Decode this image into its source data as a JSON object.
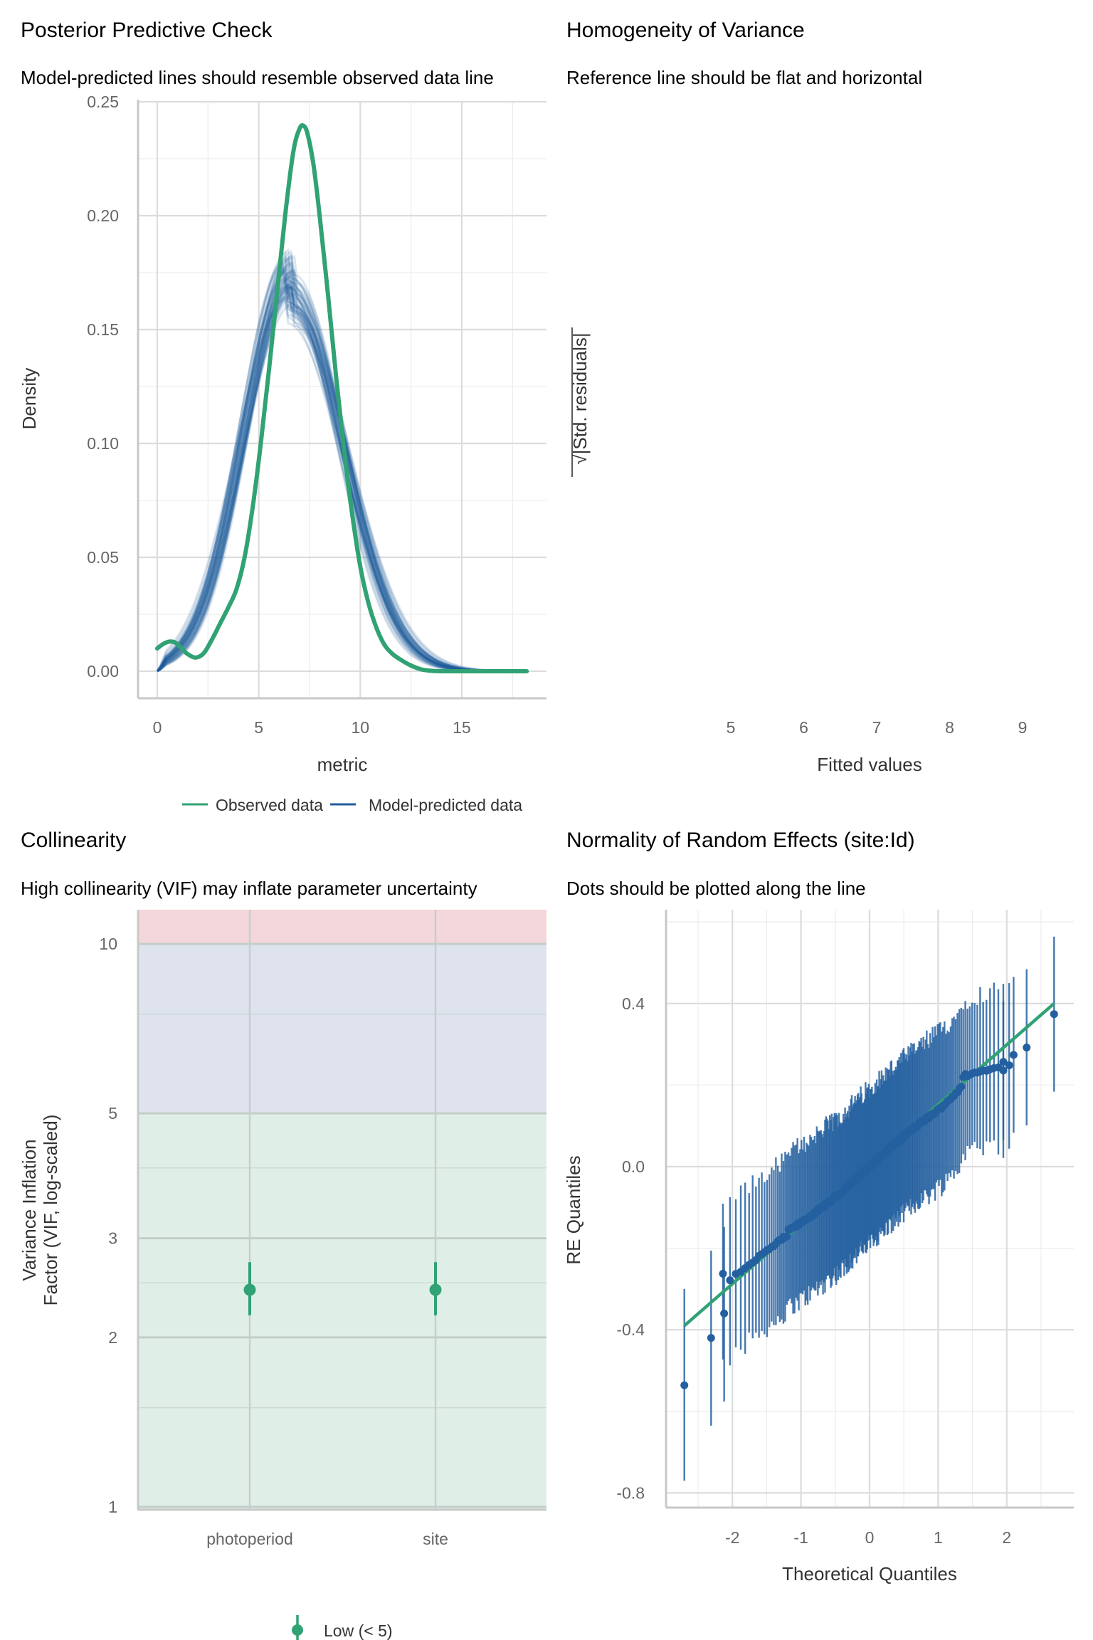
{
  "colors": {
    "observed": "#30A274",
    "predicted": "#205D9E",
    "qq_point": "#2460A0",
    "qq_line": "#30A274",
    "vif_low_band": "#DFEFE7",
    "vif_moderate_band": "#DEE3EE",
    "vif_high_band": "#F4D7DB",
    "vif_point": "#30A274"
  },
  "chart_data": [
    {
      "id": "ppc",
      "type": "line",
      "title": "Posterior Predictive Check",
      "subtitle": "Model-predicted lines should resemble observed data line",
      "xlabel": "metric",
      "ylabel": "Density",
      "xlim": [
        -0.9,
        19.2
      ],
      "ylim": [
        -0.012,
        0.25
      ],
      "xticks": [
        0,
        5,
        10,
        15
      ],
      "xtick_labels": [
        "0",
        "5",
        "10",
        "15"
      ],
      "yticks": [
        0,
        0.05,
        0.1,
        0.15,
        0.2,
        0.25
      ],
      "ytick_labels": [
        "0.00",
        "0.05",
        "0.10",
        "0.15",
        "0.20",
        "0.25"
      ],
      "grid": true,
      "legend": {
        "placement": "bottom",
        "entries": [
          {
            "label": "Observed data",
            "series": "observed"
          },
          {
            "label": "Model-predicted data",
            "series": "predicted"
          }
        ]
      },
      "observed": {
        "x": [
          0,
          0.3,
          0.6,
          0.9,
          1.2,
          1.5,
          1.9,
          2.3,
          2.7,
          3.1,
          3.5,
          3.9,
          4.3,
          4.7,
          5.1,
          5.5,
          5.9,
          6.3,
          6.7,
          7.0,
          7.2,
          7.4,
          7.7,
          8.0,
          8.4,
          8.8,
          9.2,
          9.6,
          10.0,
          10.4,
          10.8,
          11.2,
          11.6,
          12.0,
          12.5,
          13.0,
          13.5,
          14,
          15,
          16,
          17,
          18.2
        ],
        "y": [
          0.01,
          0.012,
          0.013,
          0.0125,
          0.01,
          0.0075,
          0.006,
          0.008,
          0.014,
          0.021,
          0.028,
          0.036,
          0.05,
          0.072,
          0.1,
          0.132,
          0.166,
          0.2,
          0.228,
          0.238,
          0.2395,
          0.236,
          0.222,
          0.2,
          0.166,
          0.13,
          0.097,
          0.069,
          0.046,
          0.03,
          0.019,
          0.0115,
          0.0075,
          0.005,
          0.0025,
          0.0008,
          0.0002,
          0,
          0,
          0,
          0,
          0
        ]
      },
      "predicted_summary": {
        "n_draws": 50,
        "peak_x_range": [
          6.2,
          7.1
        ],
        "peak_density_range": [
          0.155,
          0.21
        ],
        "sd_range": [
          2.05,
          2.5
        ],
        "x_range": [
          0,
          18.2
        ]
      }
    },
    {
      "id": "homogeneity",
      "type": "scatter",
      "title": "Homogeneity of Variance",
      "subtitle": "Reference line should be flat and horizontal",
      "xlabel": "Fitted values",
      "ylabel": "√|Std. residuals|",
      "xticks": [
        5,
        6,
        7,
        8,
        9
      ],
      "xtick_labels": [
        "5",
        "6",
        "7",
        "8",
        "9"
      ],
      "xlim": [
        4.4,
        9.5
      ],
      "points": [],
      "grid": false
    },
    {
      "id": "collinearity",
      "type": "scatter",
      "title": "Collinearity",
      "subtitle": "High collinearity (VIF) may inflate parameter uncertainty",
      "xlabel": "",
      "ylabel": "Variance Inflation\nFactor (VIF, log-scaled)",
      "ylabel_lines": [
        "Variance Inflation",
        "Factor (VIF, log-scaled)"
      ],
      "yscale": "log",
      "ylim": [
        1,
        12
      ],
      "yticks": [
        1,
        2,
        3,
        5,
        10
      ],
      "ytick_labels": [
        "1",
        "2",
        "3",
        "5",
        "10"
      ],
      "categories": [
        "photoperiod",
        "site"
      ],
      "values": [
        2.43,
        2.43
      ],
      "ci_low": [
        2.19,
        2.19
      ],
      "ci_high": [
        2.72,
        2.72
      ],
      "bands": [
        {
          "name": "low",
          "from": 1,
          "to": 5
        },
        {
          "name": "moderate",
          "from": 5,
          "to": 10
        },
        {
          "name": "high",
          "from": 10,
          "to": 12
        }
      ],
      "legend": {
        "placement": "bottom",
        "entries": [
          {
            "label": "Low (< 5)"
          }
        ]
      }
    },
    {
      "id": "qq_random_effects",
      "type": "scatter",
      "title": "Normality of Random Effects (site:Id)",
      "subtitle": "Dots should be plotted along the line",
      "xlabel": "Theoretical Quantiles",
      "ylabel": "RE Quantiles",
      "xlim": [
        -2.98,
        3.0
      ],
      "ylim": [
        -0.84,
        0.62
      ],
      "xticks": [
        -2,
        -1,
        0,
        1,
        2
      ],
      "xtick_labels": [
        "-2",
        "-1",
        "0",
        "1",
        "2"
      ],
      "yticks": [
        -0.8,
        -0.4,
        0.0,
        0.4
      ],
      "ytick_labels": [
        "-0.8",
        "-0.4",
        "0.0",
        "0.4"
      ],
      "grid": true,
      "reference_line": {
        "x": [
          -2.7,
          2.69
        ],
        "y": [
          -0.39,
          0.4
        ]
      },
      "n_points": 215,
      "extreme_points": [
        {
          "x": -2.7,
          "y": -0.536,
          "lo": -0.77,
          "hi": -0.3
        },
        {
          "x": -2.31,
          "y": -0.42,
          "lo": -0.635,
          "hi": -0.206
        },
        {
          "x": -2.12,
          "y": -0.36,
          "lo": -0.576,
          "hi": -0.148
        },
        {
          "x": 1.95,
          "y": 0.257,
          "lo": 0.066,
          "hi": 0.448
        },
        {
          "x": 2.1,
          "y": 0.274,
          "lo": 0.083,
          "hi": 0.465
        },
        {
          "x": 2.29,
          "y": 0.292,
          "lo": 0.101,
          "hi": 0.484
        },
        {
          "x": 2.69,
          "y": 0.374,
          "lo": 0.184,
          "hi": 0.564
        }
      ],
      "ci_halfwidth": 0.19
    }
  ]
}
